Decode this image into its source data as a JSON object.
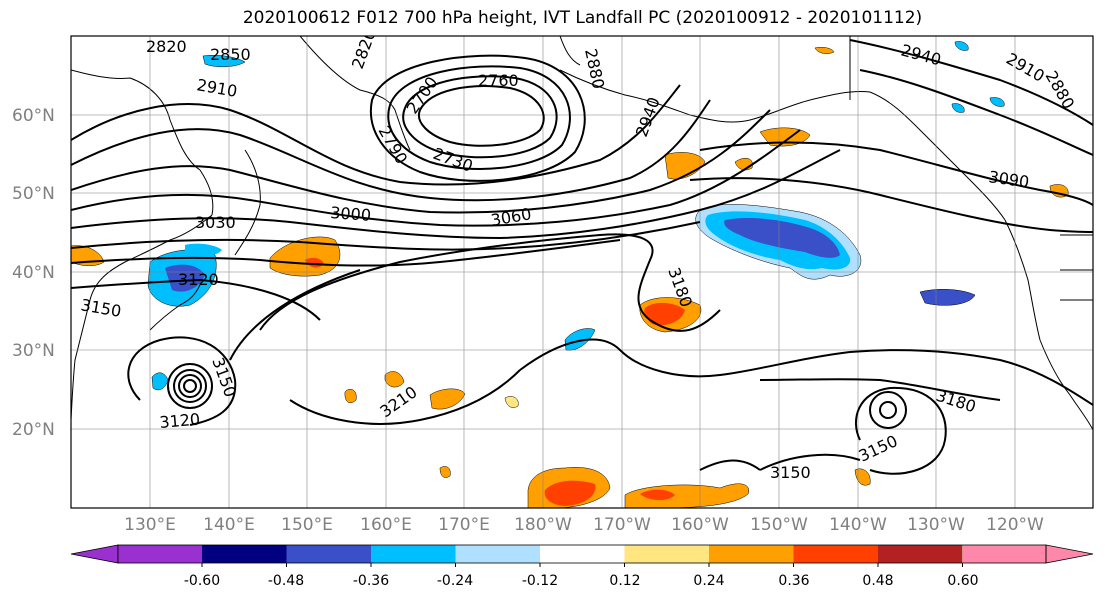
{
  "title": "2020100612 F012 700 hPa height, IVT Landfall PC (2020100912 - 2020101112)",
  "lat_labels": [
    "60°N",
    "50°N",
    "40°N",
    "30°N",
    "20°N"
  ],
  "lon_labels": [
    "130°E",
    "140°E",
    "150°E",
    "160°E",
    "170°E",
    "180°W",
    "170°W",
    "160°W",
    "150°W",
    "140°W",
    "130°W",
    "120°W"
  ],
  "contour_labels": [
    "2820",
    "2850",
    "2910",
    "2820",
    "2880",
    "2760",
    "2700",
    "2790",
    "2730",
    "2940",
    "2940",
    "2910",
    "2880",
    "3090",
    "3030",
    "3000",
    "3060",
    "3120",
    "3150",
    "3180",
    "3150",
    "3120",
    "3210",
    "3150",
    "3150",
    "3180"
  ],
  "colorbar": {
    "tick_labels": [
      "-0.60",
      "-0.48",
      "-0.36",
      "-0.24",
      "-0.12",
      "0.12",
      "0.24",
      "0.36",
      "0.48",
      "0.60"
    ],
    "colors": [
      "#9b30d0",
      "#000080",
      "#3a50c8",
      "#00bfff",
      "#b0e0ff",
      "#ffffff",
      "#ffe680",
      "#ffa000",
      "#ff4000",
      "#b22222",
      "#ff88aa"
    ]
  }
}
